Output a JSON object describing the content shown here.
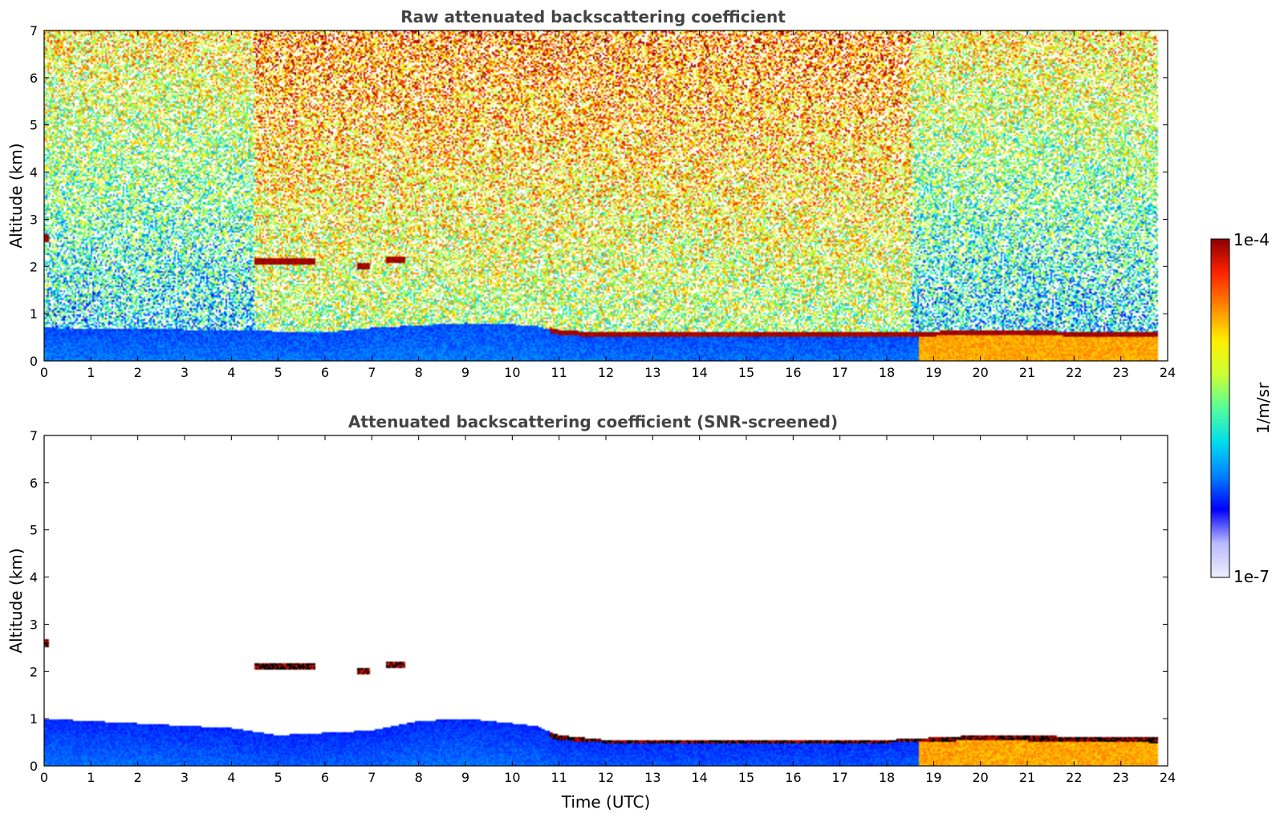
{
  "chart_data": [
    {
      "type": "heatmap",
      "title": "Raw attenuated backscattering coefficient",
      "xlabel": "",
      "ylabel": "Altitude (km)",
      "xlim": [
        0,
        24
      ],
      "ylim": [
        0,
        7
      ],
      "xticks": [
        "0",
        "1",
        "2",
        "3",
        "4",
        "5",
        "6",
        "7",
        "8",
        "9",
        "10",
        "11",
        "12",
        "13",
        "14",
        "15",
        "16",
        "17",
        "18",
        "19",
        "20",
        "21",
        "22",
        "23",
        "24"
      ],
      "yticks": [
        "0",
        "1",
        "2",
        "3",
        "4",
        "5",
        "6",
        "7"
      ],
      "data_end_time": 23.8,
      "features": {
        "boundary_layer_top_km": [
          {
            "t": 0,
            "h": 0.7
          },
          {
            "t": 4,
            "h": 0.65
          },
          {
            "t": 6,
            "h": 0.6
          },
          {
            "t": 7,
            "h": 0.7
          },
          {
            "t": 9,
            "h": 0.8
          },
          {
            "t": 10.5,
            "h": 0.75
          },
          {
            "t": 11,
            "h": 0.6
          },
          {
            "t": 12,
            "h": 0.55
          },
          {
            "t": 15,
            "h": 0.55
          },
          {
            "t": 18,
            "h": 0.55
          },
          {
            "t": 20,
            "h": 0.6
          },
          {
            "t": 23.8,
            "h": 0.55
          }
        ],
        "cloud_layers": [
          {
            "t_start": 4.5,
            "t_end": 5.8,
            "alt_km": 2.1
          },
          {
            "t_start": 6.7,
            "t_end": 6.95,
            "alt_km": 2.0
          },
          {
            "t_start": 7.3,
            "t_end": 7.7,
            "alt_km": 2.15
          },
          {
            "t_start": 0.0,
            "t_end": 0.1,
            "alt_km": 2.6
          }
        ]
      }
    },
    {
      "type": "heatmap",
      "title": "Attenuated backscattering coefficient (SNR-screened)",
      "xlabel": "Time (UTC)",
      "ylabel": "Altitude (km)",
      "xlim": [
        0,
        24
      ],
      "ylim": [
        0,
        7
      ],
      "xticks": [
        "0",
        "1",
        "2",
        "3",
        "4",
        "5",
        "6",
        "7",
        "8",
        "9",
        "10",
        "11",
        "12",
        "13",
        "14",
        "15",
        "16",
        "17",
        "18",
        "19",
        "20",
        "21",
        "22",
        "23",
        "24"
      ],
      "yticks": [
        "0",
        "1",
        "2",
        "3",
        "4",
        "5",
        "6",
        "7"
      ],
      "data_end_time": 23.8,
      "screened_top_km": [
        {
          "t": 0,
          "h": 1.0
        },
        {
          "t": 2,
          "h": 0.9
        },
        {
          "t": 4,
          "h": 0.8
        },
        {
          "t": 5,
          "h": 0.65
        },
        {
          "t": 6,
          "h": 0.7
        },
        {
          "t": 7,
          "h": 0.75
        },
        {
          "t": 8,
          "h": 0.95
        },
        {
          "t": 9,
          "h": 1.0
        },
        {
          "t": 10.5,
          "h": 0.85
        },
        {
          "t": 11,
          "h": 0.65
        },
        {
          "t": 12,
          "h": 0.55
        },
        {
          "t": 15,
          "h": 0.55
        },
        {
          "t": 18,
          "h": 0.55
        },
        {
          "t": 20,
          "h": 0.65
        },
        {
          "t": 23.8,
          "h": 0.6
        }
      ]
    }
  ],
  "colorbar": {
    "label": "1/m/sr",
    "max_label": "1e-4",
    "min_label": "1e-7",
    "scale": "log",
    "colormap": "jet",
    "colors": [
      "#eeeeff",
      "#bbbbff",
      "#0000ff",
      "#0080ff",
      "#00ddee",
      "#55ff99",
      "#ccff33",
      "#ffee00",
      "#ff8800",
      "#ff2200",
      "#8b0000"
    ]
  }
}
